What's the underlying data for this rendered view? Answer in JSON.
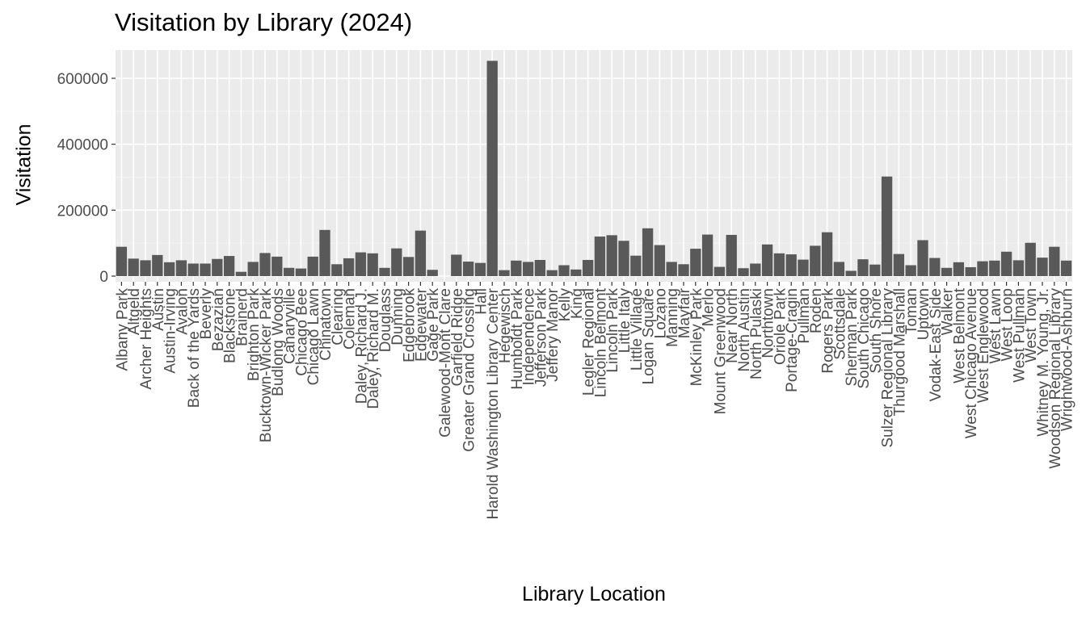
{
  "chart_data": {
    "type": "bar",
    "title": "Visitation by Library (2024)",
    "xlabel": "Library Location",
    "ylabel": "Visitation",
    "ylim": [
      0,
      680000
    ],
    "yticks": [
      0,
      200000,
      400000,
      600000
    ],
    "ytick_labels": [
      "0",
      "200000",
      "400000",
      "600000"
    ],
    "grid": true,
    "categories": [
      "Albany Park",
      "Altgeld",
      "Archer Heights",
      "Austin",
      "Austin-Irving",
      "Avalon",
      "Back of the Yards",
      "Beverly",
      "Bezazian",
      "Blackstone",
      "Brainerd",
      "Brighton Park",
      "Bucktown-Wicker Park",
      "Budlong Woods",
      "Canaryville",
      "Chicago Bee",
      "Chicago Lawn",
      "Chinatown",
      "Clearing",
      "Coleman",
      "Daley, Richard J.",
      "Daley, Richard M.",
      "Douglass",
      "Dunning",
      "Edgebrook",
      "Edgewater",
      "Gage Park",
      "Galewood-Mont Clare",
      "Garfield Ridge",
      "Greater Grand Crossing",
      "Hall",
      "Harold Washington Library Center",
      "Hegewisch",
      "Humboldt Park",
      "Independence",
      "Jefferson Park",
      "Jeffery Manor",
      "Kelly",
      "King",
      "Legler Regional",
      "Lincoln Belmont",
      "Lincoln Park",
      "Little Italy",
      "Little Village",
      "Logan Square",
      "Lozano",
      "Manning",
      "Mayfair",
      "McKinley Park",
      "Merlo",
      "Mount Greenwood",
      "Near North",
      "North Austin",
      "North Pulaski",
      "Northtown",
      "Oriole Park",
      "Portage-Cragin",
      "Pullman",
      "Roden",
      "Rogers Park",
      "Scottsdale",
      "Sherman Park",
      "South Chicago",
      "South Shore",
      "Sulzer Regional Library",
      "Thurgood Marshall",
      "Toman",
      "Uptown",
      "Vodak-East Side",
      "Walker",
      "West Belmont",
      "West Chicago Avenue",
      "West Englewood",
      "West Lawn",
      "West Loop",
      "West Pullman",
      "West Town",
      "Whitney M. Young, Jr.",
      "Woodson Regional Library",
      "Wrightwood-Ashburn"
    ],
    "values": [
      89000,
      53000,
      48000,
      64000,
      42000,
      48000,
      38000,
      38000,
      52000,
      61000,
      13000,
      43000,
      70000,
      59000,
      25000,
      23000,
      59000,
      140000,
      36000,
      54000,
      72000,
      69000,
      25000,
      84000,
      58000,
      138000,
      19000,
      0,
      65000,
      44000,
      40000,
      653000,
      18000,
      47000,
      43000,
      49000,
      18000,
      33000,
      20000,
      49000,
      120000,
      124000,
      107000,
      62000,
      145000,
      94000,
      43000,
      36000,
      83000,
      126000,
      28000,
      125000,
      24000,
      38000,
      96000,
      69000,
      66000,
      50000,
      92000,
      133000,
      43000,
      16000,
      51000,
      35000,
      302000,
      67000,
      33000,
      109000,
      55000,
      25000,
      42000,
      27000,
      45000,
      47000,
      74000,
      48000,
      101000,
      56000,
      89000,
      47000
    ],
    "colors": {
      "bar": "#595959",
      "panel": "#ebebeb",
      "grid_major": "#ffffff",
      "grid_minor": "#f5f5f5",
      "axis_text": "#4d4d4d"
    }
  }
}
